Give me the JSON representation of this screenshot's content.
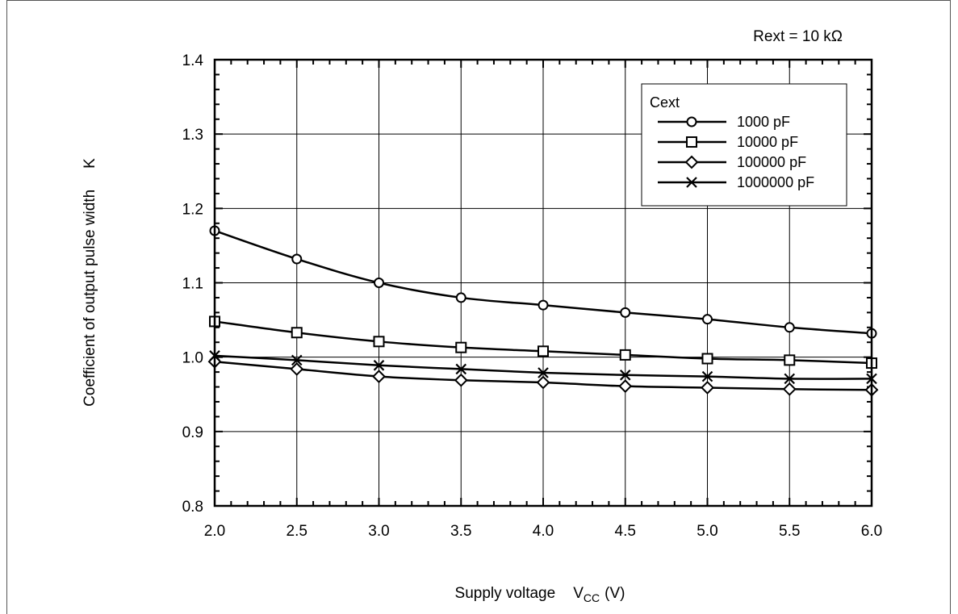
{
  "chart_data": {
    "type": "line",
    "annotation": "Rext = 10 kΩ",
    "xlabel_main": "Supply voltage",
    "xlabel_symbol": "V",
    "xlabel_subscript": "CC",
    "xlabel_unit": "(V)",
    "ylabel_main": "Coefficient of output pulse width",
    "ylabel_symbol": "K",
    "xlim": [
      2.0,
      6.0
    ],
    "ylim": [
      0.8,
      1.4
    ],
    "x_ticks": [
      "2.0",
      "2.5",
      "3.0",
      "3.5",
      "4.0",
      "4.5",
      "5.0",
      "5.5",
      "6.0"
    ],
    "y_ticks": [
      "0.8",
      "0.9",
      "1.0",
      "1.1",
      "1.2",
      "1.3",
      "1.4"
    ],
    "grid": true,
    "legend_position": "top-right",
    "legend_title": "Cext",
    "x": [
      2.0,
      2.5,
      3.0,
      3.5,
      4.0,
      4.5,
      5.0,
      5.5,
      6.0
    ],
    "series": [
      {
        "name": "1000 pF",
        "marker": "circle",
        "values": [
          1.17,
          1.132,
          1.1,
          1.08,
          1.07,
          1.06,
          1.051,
          1.04,
          1.032
        ]
      },
      {
        "name": "10000 pF",
        "marker": "square",
        "values": [
          1.048,
          1.033,
          1.021,
          1.013,
          1.008,
          1.003,
          0.998,
          0.996,
          0.992
        ]
      },
      {
        "name": "100000 pF",
        "marker": "diamond",
        "values": [
          0.994,
          0.984,
          0.974,
          0.969,
          0.966,
          0.961,
          0.959,
          0.957,
          0.956
        ]
      },
      {
        "name": "1000000 pF",
        "marker": "cross",
        "values": [
          1.002,
          0.996,
          0.989,
          0.984,
          0.979,
          0.976,
          0.974,
          0.971,
          0.971
        ]
      }
    ]
  }
}
